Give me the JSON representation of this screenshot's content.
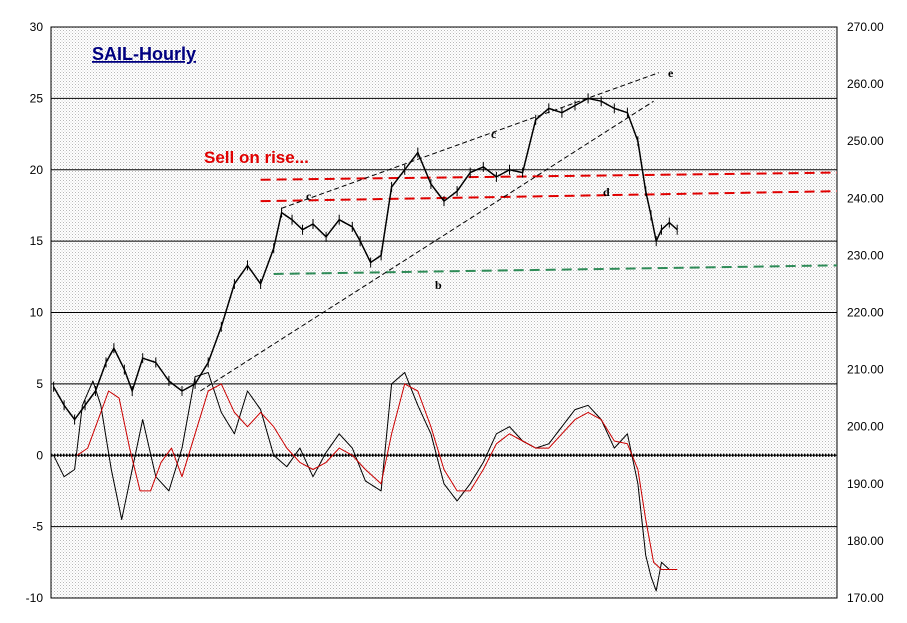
{
  "chart_data": {
    "type": "line",
    "title": "SAIL-Hourly",
    "annotation": "Sell on rise...",
    "wave_labels": [
      "c",
      "b",
      "c",
      "d",
      "e"
    ],
    "left_axis": {
      "ylim": [
        -10,
        30
      ],
      "ticks": [
        "30",
        "25",
        "20",
        "15",
        "10",
        "5",
        "0",
        "-5",
        "-10"
      ]
    },
    "right_axis": {
      "ylim": [
        170,
        270
      ],
      "ticks": [
        "270.00",
        "260.00",
        "250.00",
        "240.00",
        "230.00",
        "220.00",
        "210.00",
        "200.00",
        "190.00",
        "180.00",
        "170.00"
      ]
    },
    "grid": true,
    "series": [
      {
        "role": "price",
        "axis": "left",
        "color": "#000000",
        "x": [
          1,
          5,
          9,
          13,
          17,
          21,
          24,
          28,
          31,
          35,
          40,
          45,
          50,
          55,
          60,
          65,
          70,
          75,
          80,
          85,
          88,
          92,
          96,
          100,
          105,
          110,
          115,
          118,
          122,
          126,
          130,
          135,
          140,
          145,
          150,
          155,
          160,
          165,
          170,
          175,
          180,
          185,
          190,
          195,
          200,
          205,
          210,
          215,
          220,
          224,
          227,
          229,
          231,
          233,
          236,
          239
        ],
        "y": [
          4.8,
          3.5,
          2.5,
          3.5,
          4.5,
          6.5,
          7.5,
          6.0,
          4.5,
          6.8,
          6.5,
          5.2,
          4.5,
          5.0,
          6.5,
          9.0,
          12.0,
          13.3,
          12.0,
          14.5,
          17.0,
          16.5,
          15.8,
          16.2,
          15.3,
          16.5,
          16.0,
          15.0,
          13.5,
          14.0,
          18.8,
          20.0,
          21.2,
          19.0,
          17.8,
          18.5,
          19.8,
          20.2,
          19.5,
          20.0,
          19.8,
          23.5,
          24.3,
          24.0,
          24.5,
          25.0,
          24.8,
          24.3,
          24.0,
          22.0,
          18.5,
          16.8,
          15.0,
          15.8,
          16.3,
          15.8
        ]
      },
      {
        "role": "oscillator",
        "axis": "left",
        "color": "#000000",
        "x": [
          1,
          5,
          9,
          12,
          16,
          19,
          23,
          27,
          31,
          35,
          40,
          45,
          50,
          55,
          60,
          65,
          70,
          75,
          80,
          85,
          90,
          95,
          100,
          105,
          110,
          115,
          120,
          126,
          130,
          135,
          140,
          145,
          150,
          155,
          160,
          165,
          170,
          175,
          180,
          185,
          190,
          195,
          200,
          205,
          210,
          215,
          220,
          224,
          227,
          229,
          231,
          233,
          236,
          239
        ],
        "y": [
          0,
          -1.5,
          -1.0,
          3.5,
          5.2,
          3.5,
          -1.0,
          -4.5,
          -1.0,
          2.5,
          -1.5,
          -2.5,
          0.5,
          5.5,
          5.8,
          3.0,
          1.5,
          4.5,
          3.2,
          0.0,
          -0.8,
          0.5,
          -1.5,
          0.2,
          1.5,
          0.5,
          -1.8,
          -2.5,
          5.0,
          5.8,
          3.5,
          1.5,
          -2.0,
          -3.2,
          -2.0,
          -0.5,
          1.5,
          2.0,
          1.0,
          0.5,
          0.8,
          2.0,
          3.2,
          3.5,
          2.5,
          0.5,
          1.5,
          -2.0,
          -7.0,
          -8.5,
          -9.5,
          -7.5,
          -8.0,
          -8.0
        ]
      },
      {
        "role": "signal",
        "axis": "left",
        "color": "#cc0000",
        "x": [
          10,
          14,
          18,
          22,
          26,
          30,
          34,
          38,
          42,
          46,
          50,
          55,
          60,
          65,
          70,
          75,
          80,
          85,
          90,
          95,
          100,
          105,
          110,
          115,
          120,
          126,
          130,
          135,
          140,
          145,
          150,
          155,
          160,
          165,
          170,
          175,
          180,
          185,
          190,
          195,
          200,
          205,
          210,
          215,
          220,
          224,
          227,
          230,
          233,
          236,
          239
        ],
        "y": [
          0,
          0.5,
          2.5,
          4.5,
          4.0,
          0.5,
          -2.5,
          -2.5,
          -0.5,
          0.5,
          -1.5,
          1.5,
          4.5,
          5.0,
          3.0,
          2.0,
          3.0,
          2.0,
          0.5,
          -0.5,
          -1.0,
          -0.5,
          0.5,
          0.0,
          -1.0,
          -2.0,
          1.5,
          5.0,
          4.5,
          2.0,
          -1.0,
          -2.5,
          -2.5,
          -1.0,
          0.8,
          1.5,
          1.0,
          0.5,
          0.5,
          1.5,
          2.5,
          3.0,
          2.5,
          1.0,
          0.8,
          -1.0,
          -4.5,
          -7.5,
          -8.0,
          -8.0,
          -8.0
        ]
      }
    ],
    "reference_lines": [
      {
        "role": "red-dashed-upper",
        "color": "#e00000",
        "x": [
          80,
          300
        ],
        "y": [
          19.3,
          19.8
        ]
      },
      {
        "role": "red-dashed-lower",
        "color": "#e00000",
        "x": [
          80,
          300
        ],
        "y": [
          17.8,
          18.5
        ]
      },
      {
        "role": "green-dashed-support",
        "color": "#2e8b57",
        "x": [
          85,
          300
        ],
        "y": [
          12.7,
          13.3
        ]
      },
      {
        "role": "black-dashed-channel-upper",
        "color": "#000000",
        "x": [
          88,
          232
        ],
        "y": [
          17.3,
          26.8
        ]
      },
      {
        "role": "black-dashed-channel-lower",
        "color": "#000000",
        "x": [
          57,
          230
        ],
        "y": [
          4.5,
          24.8
        ]
      }
    ],
    "x_range": [
      0,
      300
    ],
    "zero_line": {
      "value": 0,
      "style": "dotted"
    }
  }
}
